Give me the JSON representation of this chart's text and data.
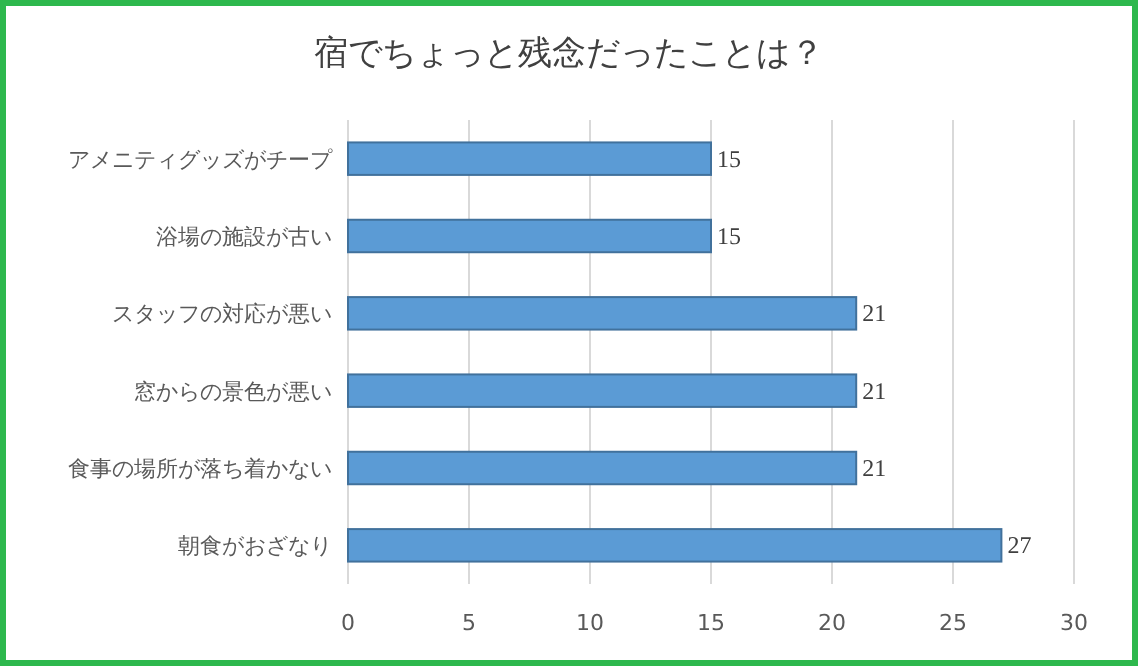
{
  "chart_data": {
    "type": "bar",
    "orientation": "horizontal",
    "title": "宿でちょっと残念だったことは？",
    "categories": [
      "アメニティグッズがチープ",
      "浴場の施設が古い",
      "スタッフの対応が悪い",
      "窓からの景色が悪い",
      "食事の場所が落ち着かない",
      "朝食がおざなり"
    ],
    "values": [
      15,
      15,
      21,
      21,
      21,
      27
    ],
    "color": "#5b9bd5",
    "xlim": [
      0,
      30
    ],
    "xticks": [
      0,
      5,
      10,
      15,
      20,
      25,
      30
    ],
    "grid": "x",
    "data_labels": true
  }
}
